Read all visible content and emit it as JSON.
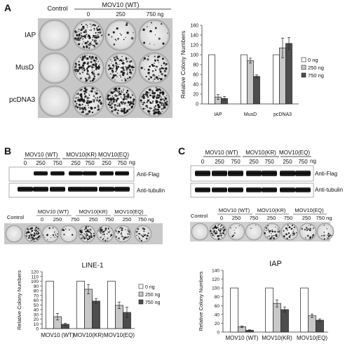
{
  "panels": {
    "a": {
      "letter": "A",
      "control_label": "Control",
      "wt_label": "MOV10 (WT)",
      "doses": [
        "0",
        "250",
        "750 ng"
      ],
      "rows": [
        "IAP",
        "MusD",
        "pcDNA3"
      ]
    },
    "b": {
      "letter": "B",
      "groups": [
        "MOV10 (WT)",
        "MOV10(KR)",
        "MOV10(EQ)"
      ],
      "dose_ticks": [
        "0",
        "250",
        "750",
        "250",
        "750",
        "250",
        "750"
      ],
      "ng": "ng",
      "blot_labels": [
        "Anti-Flag",
        "Anti-tubulin"
      ],
      "plate_control": "Control",
      "plate_doses": [
        "0",
        "250",
        "750",
        "250",
        "750",
        "250",
        "750 ng"
      ]
    },
    "c": {
      "letter": "C",
      "groups": [
        "MOV10 (WT)",
        "MOV10(KR)",
        "MOV10(EQ)"
      ],
      "dose_ticks": [
        "0",
        "250",
        "750",
        "250",
        "750",
        "250",
        "750"
      ],
      "ng": "ng",
      "blot_labels": [
        "Anti-Flag",
        "Anti-tubulin"
      ],
      "plate_control": "Control",
      "plate_doses": [
        "0",
        "250",
        "750",
        "250",
        "750",
        "250",
        "750 ng"
      ]
    }
  },
  "colors": {
    "white_bar": "#ffffff",
    "light_bar": "#c8c8c8",
    "dark_bar": "#4d4d4d"
  },
  "chart_data": [
    {
      "id": "chart-a",
      "type": "bar",
      "title": "",
      "ylabel": "Relative Colony Numbers",
      "xlabel": "",
      "ylim": [
        0,
        160
      ],
      "yticks": [
        0,
        20,
        40,
        60,
        80,
        100,
        120,
        140,
        160
      ],
      "categories": [
        "IAP",
        "MusD",
        "pcDNA3"
      ],
      "legend": [
        "0 ng",
        "250 ng",
        "750 ng"
      ],
      "series": [
        {
          "name": "0 ng",
          "values": [
            100,
            100,
            100
          ],
          "errors": [
            0,
            0,
            0
          ]
        },
        {
          "name": "250 ng",
          "values": [
            14,
            88,
            114
          ],
          "errors": [
            5,
            5,
            20
          ]
        },
        {
          "name": "750 ng",
          "values": [
            11,
            56,
            123
          ],
          "errors": [
            4,
            3,
            12
          ]
        }
      ]
    },
    {
      "id": "chart-b",
      "type": "bar",
      "title": "LINE-1",
      "ylabel": "Relative Colony Numbers",
      "xlabel": "",
      "ylim": [
        0,
        120
      ],
      "yticks": [
        0,
        10,
        20,
        30,
        40,
        50,
        60,
        70,
        80,
        90,
        100,
        110,
        120
      ],
      "categories": [
        "MOV10 (WT)",
        "MOV10(KR)",
        "MOV10(EQ)"
      ],
      "legend": [
        "0 ng",
        "250 ng",
        "750 ng"
      ],
      "series": [
        {
          "name": "0 ng",
          "values": [
            100,
            100,
            100
          ],
          "errors": [
            0,
            0,
            0
          ]
        },
        {
          "name": "250 ng",
          "values": [
            25,
            83,
            49
          ],
          "errors": [
            7,
            10,
            7
          ]
        },
        {
          "name": "750 ng",
          "values": [
            9,
            58,
            34
          ],
          "errors": [
            2,
            5,
            11
          ]
        }
      ]
    },
    {
      "id": "chart-c",
      "type": "bar",
      "title": "IAP",
      "ylabel": "Relative Colony Numbers",
      "xlabel": "",
      "ylim": [
        0,
        140
      ],
      "yticks": [
        0,
        20,
        40,
        60,
        80,
        100,
        120,
        140
      ],
      "categories": [
        "MOV10 (WT)",
        "MOV10(KR)",
        "MOV10(EQ)"
      ],
      "legend": [],
      "series": [
        {
          "name": "",
          "values": [
            100,
            100,
            100
          ],
          "errors": [
            0,
            0,
            0
          ]
        },
        {
          "name": "",
          "values": [
            12,
            65,
            37
          ],
          "errors": [
            2,
            8,
            4
          ]
        },
        {
          "name": "",
          "values": [
            4,
            51,
            27
          ],
          "errors": [
            1,
            6,
            3
          ]
        }
      ]
    }
  ]
}
